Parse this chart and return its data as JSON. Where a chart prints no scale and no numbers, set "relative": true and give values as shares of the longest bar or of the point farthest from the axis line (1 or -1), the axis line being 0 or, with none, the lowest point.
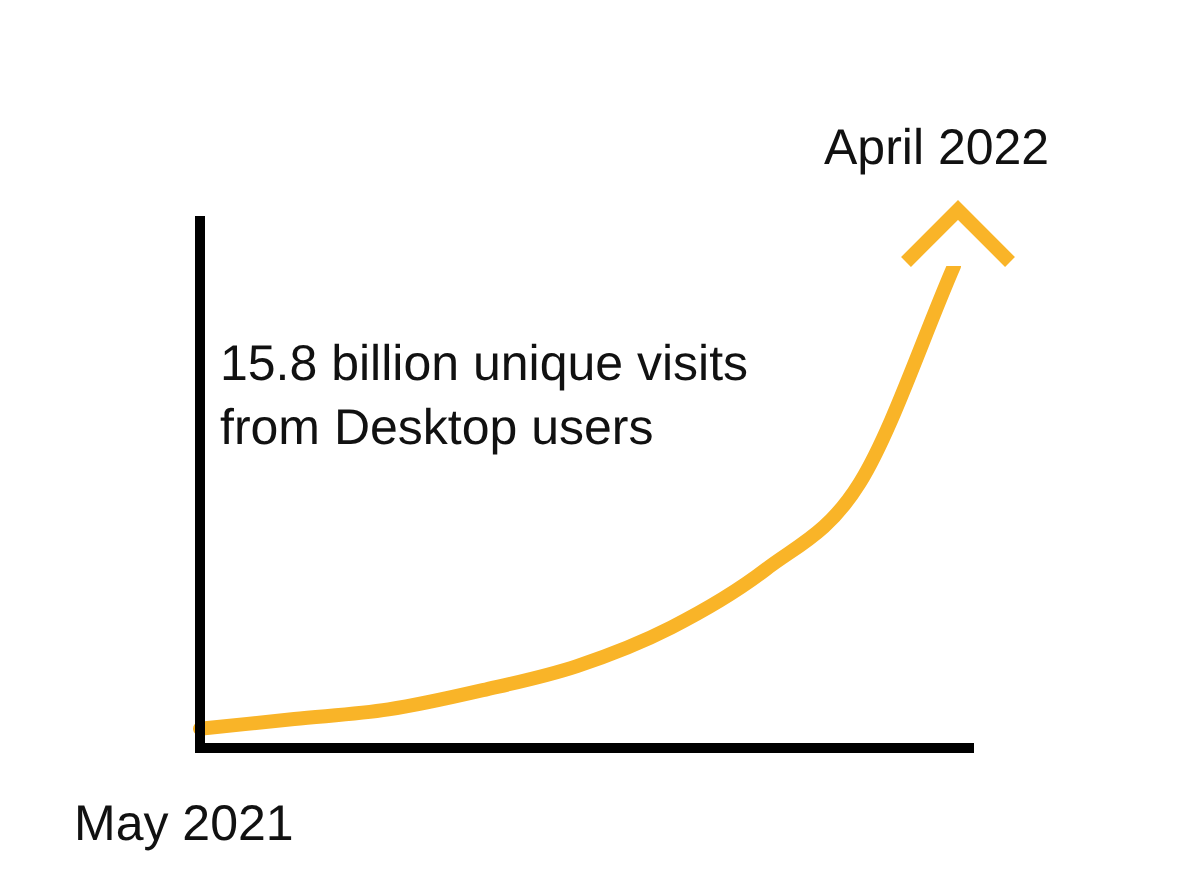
{
  "chart_data": {
    "type": "line",
    "relative": true,
    "categories": [
      null,
      null,
      null,
      null,
      null,
      null,
      null,
      null,
      null
    ],
    "values": [
      0.04,
      0.06,
      0.08,
      0.12,
      0.17,
      0.25,
      0.37,
      0.55,
      1.0
    ],
    "color": "#f9b428",
    "marker": "none",
    "line_style": "solid",
    "legend": false,
    "annotations": [
      "15.8 billion unique visits from Desktop users",
      "May 2021",
      "April 2022"
    ]
  }
}
